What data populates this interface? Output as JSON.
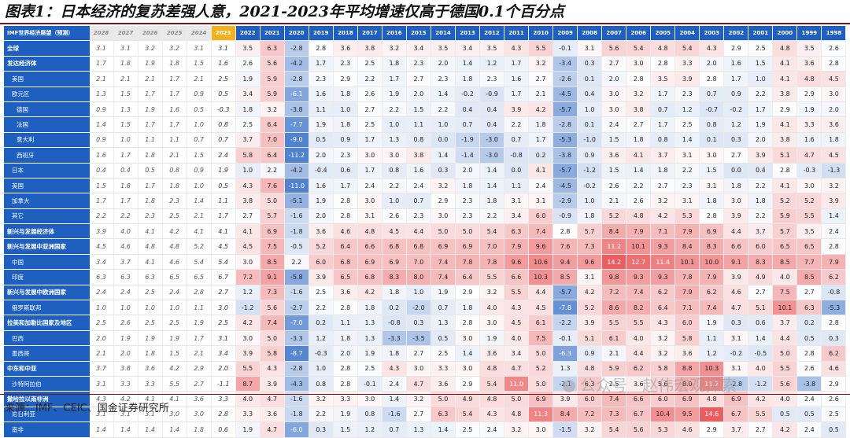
{
  "page": {
    "title": "图表1：日本经济的复苏差强人意，2021-2023年平均增速仅高于德国0.1个百分点",
    "source": "来源：IMF、CEIC、国金证券研究所",
    "watermark": "公众号 · 赵伟宏观探索"
  },
  "chart_data": {
    "type": "table",
    "corner_label": "IMF世界经济展望（预测）",
    "columns": [
      "2028",
      "2027",
      "2026",
      "2025",
      "2024",
      "2023",
      "2022",
      "2021",
      "2020",
      "2019",
      "2018",
      "2017",
      "2016",
      "2015",
      "2014",
      "2013",
      "2012",
      "2011",
      "2010",
      "2009",
      "2008",
      "2007",
      "2006",
      "2005",
      "2004",
      "2003",
      "2002",
      "2001",
      "2000",
      "1999",
      "1998"
    ],
    "forecast_columns": [
      "2028",
      "2027",
      "2026",
      "2025",
      "2024"
    ],
    "highlight_column": "2023",
    "color_scale": {
      "negative": "#3e74c9",
      "positive": "#e84b4e",
      "neutral": "#ffffff"
    },
    "rows": [
      {
        "label": "全球",
        "style": "bold",
        "values": [
          "3.1",
          "3.1",
          "3.2",
          "3.2",
          "3.1",
          "3.1",
          "3.5",
          "6.3",
          "-2.8",
          "2.8",
          "3.6",
          "3.8",
          "3.2",
          "3.4",
          "3.5",
          "3.4",
          "3.5",
          "4.3",
          "5.5",
          "-0.1",
          "3.1",
          "5.6",
          "5.4",
          "4.8",
          "5.4",
          "4.3",
          "2.9",
          "2.5",
          "4.8",
          "3.5",
          "2.6"
        ]
      },
      {
        "label": "发达经济体",
        "style": "bold",
        "values": [
          "1.7",
          "1.8",
          "1.9",
          "1.8",
          "1.5",
          "1.6",
          "2.6",
          "5.6",
          "-4.2",
          "1.7",
          "2.3",
          "2.5",
          "1.8",
          "2.3",
          "2.0",
          "1.4",
          "1.2",
          "1.7",
          "3.2",
          "-3.4",
          "0.3",
          "2.7",
          "3.0",
          "2.8",
          "3.3",
          "2.0",
          "1.6",
          "1.5",
          "4.1",
          "3.6",
          "2.8"
        ]
      },
      {
        "label": "美国",
        "style": "i1",
        "values": [
          "2.1",
          "2.1",
          "2.1",
          "1.7",
          "2.1",
          "2.5",
          "1.9",
          "5.9",
          "-2.8",
          "2.3",
          "2.9",
          "2.2",
          "1.7",
          "2.7",
          "2.3",
          "1.8",
          "2.3",
          "1.6",
          "2.7",
          "-2.6",
          "0.1",
          "2.0",
          "2.8",
          "3.5",
          "3.9",
          "2.8",
          "1.7",
          "1.0",
          "4.1",
          "4.8",
          "4.5"
        ]
      },
      {
        "label": "欧元区",
        "style": "i1",
        "values": [
          "1.3",
          "1.5",
          "1.7",
          "1.7",
          "0.9",
          "0.5",
          "3.4",
          "5.9",
          "-6.1",
          "1.6",
          "1.8",
          "2.6",
          "1.9",
          "2.0",
          "1.4",
          "-0.2",
          "-0.9",
          "1.7",
          "2.1",
          "-4.5",
          "0.4",
          "3.0",
          "3.2",
          "1.7",
          "2.3",
          "0.7",
          "0.9",
          "2.2",
          "3.8",
          "2.9",
          "3.0"
        ]
      },
      {
        "label": "德国",
        "style": "i2",
        "values": [
          "0.9",
          "1.3",
          "1.9",
          "1.6",
          "0.5",
          "-0.3",
          "1.8",
          "3.2",
          "-3.8",
          "1.1",
          "1.0",
          "2.7",
          "2.2",
          "1.5",
          "2.2",
          "0.4",
          "0.4",
          "3.9",
          "4.2",
          "-5.7",
          "1.0",
          "3.0",
          "3.8",
          "0.7",
          "1.2",
          "-0.7",
          "-0.2",
          "1.7",
          "2.9",
          "1.9",
          "2.0"
        ]
      },
      {
        "label": "法国",
        "style": "i2",
        "values": [
          "1.4",
          "1.5",
          "1.7",
          "1.7",
          "1.0",
          "0.8",
          "2.5",
          "6.4",
          "-7.7",
          "1.9",
          "1.8",
          "2.5",
          "1.0",
          "1.1",
          "1.0",
          "0.7",
          "0.4",
          "2.2",
          "1.8",
          "-2.8",
          "0.1",
          "2.4",
          "2.7",
          "1.7",
          "2.5",
          "0.8",
          "1.2",
          "1.9",
          "4.1",
          "3.3",
          "3.6"
        ]
      },
      {
        "label": "意大利",
        "style": "i2",
        "values": [
          "0.9",
          "1.0",
          "1.1",
          "1.1",
          "0.7",
          "0.7",
          "3.7",
          "7.0",
          "-9.0",
          "0.5",
          "0.9",
          "1.7",
          "1.3",
          "0.8",
          "0.0",
          "-1.9",
          "-3.0",
          "0.7",
          "1.7",
          "-5.3",
          "-1.0",
          "1.5",
          "1.8",
          "0.8",
          "1.4",
          "0.1",
          "0.3",
          "2.0",
          "3.8",
          "1.6",
          "1.8"
        ]
      },
      {
        "label": "西班牙",
        "style": "i2",
        "values": [
          "1.6",
          "1.7",
          "1.8",
          "2.1",
          "1.5",
          "2.4",
          "5.8",
          "6.4",
          "-11.2",
          "2.0",
          "2.3",
          "3.0",
          "3.0",
          "3.8",
          "1.4",
          "-1.4",
          "-3.0",
          "-0.8",
          "0.2",
          "-3.8",
          "0.9",
          "3.6",
          "4.1",
          "3.7",
          "3.1",
          "3.0",
          "2.7",
          "3.9",
          "5.1",
          "4.7",
          "4.5"
        ]
      },
      {
        "label": "日本",
        "style": "i1",
        "values": [
          "0.4",
          "0.4",
          "0.5",
          "0.8",
          "0.9",
          "1.9",
          "1.0",
          "2.2",
          "-4.2",
          "-0.4",
          "0.6",
          "1.7",
          "0.8",
          "1.6",
          "0.3",
          "2.0",
          "1.4",
          "0.0",
          "4.1",
          "-5.7",
          "-1.2",
          "1.5",
          "1.4",
          "1.8",
          "2.2",
          "1.5",
          "0.0",
          "0.4",
          "2.8",
          "-0.3",
          "-1.3"
        ]
      },
      {
        "label": "英国",
        "style": "i1",
        "values": [
          "1.5",
          "1.8",
          "1.7",
          "1.8",
          "1.0",
          "0.5",
          "4.3",
          "7.6",
          "-11.0",
          "1.6",
          "1.7",
          "2.4",
          "2.2",
          "2.4",
          "3.2",
          "1.8",
          "1.4",
          "1.1",
          "2.4",
          "-4.5",
          "-0.2",
          "2.6",
          "2.2",
          "2.7",
          "2.3",
          "3.1",
          "1.8",
          "2.2",
          "4.1",
          "3.0",
          "3.2"
        ]
      },
      {
        "label": "加拿大",
        "style": "i1",
        "values": [
          "1.7",
          "1.7",
          "1.8",
          "2.3",
          "1.4",
          "1.1",
          "3.8",
          "5.0",
          "-5.1",
          "1.9",
          "2.8",
          "3.0",
          "1.0",
          "0.7",
          "2.9",
          "2.3",
          "1.8",
          "3.1",
          "3.1",
          "-2.9",
          "1.0",
          "2.1",
          "2.6",
          "3.2",
          "3.1",
          "1.8",
          "3.0",
          "1.8",
          "5.2",
          "5.2",
          "3.9"
        ]
      },
      {
        "label": "其它",
        "style": "i1",
        "values": [
          "2.2",
          "2.2",
          "2.3",
          "2.5",
          "2.1",
          "1.7",
          "2.7",
          "5.7",
          "-1.6",
          "2.0",
          "2.8",
          "3.1",
          "2.6",
          "2.3",
          "3.0",
          "2.3",
          "2.2",
          "3.4",
          "6.0",
          "-0.9",
          "1.8",
          "5.2",
          "4.8",
          "4.2",
          "5.3",
          "2.8",
          "3.9",
          "2.2",
          "5.9",
          "5.5",
          "1.4"
        ]
      },
      {
        "label": "新兴与发展经济体",
        "style": "bold",
        "values": [
          "3.9",
          "4.0",
          "4.1",
          "4.2",
          "4.1",
          "4.1",
          "4.1",
          "6.9",
          "-1.8",
          "3.6",
          "4.6",
          "4.8",
          "4.5",
          "4.4",
          "5.0",
          "5.0",
          "5.4",
          "6.3",
          "7.4",
          "2.8",
          "5.7",
          "8.4",
          "7.9",
          "7.1",
          "7.9",
          "6.9",
          "4.4",
          "3.7",
          "5.7",
          "3.5",
          "2.4"
        ]
      },
      {
        "label": "新兴与发展中亚洲国家",
        "style": "bold",
        "values": [
          "4.5",
          "4.6",
          "4.8",
          "4.8",
          "5.2",
          "4.5",
          "4.5",
          "7.5",
          "-0.5",
          "5.2",
          "6.4",
          "6.6",
          "6.8",
          "6.8",
          "6.9",
          "6.9",
          "7.0",
          "7.9",
          "9.6",
          "7.6",
          "7.3",
          "11.2",
          "10.1",
          "9.3",
          "8.4",
          "8.3",
          "6.6",
          "6.0",
          "6.5",
          "6.5",
          "2.8"
        ]
      },
      {
        "label": "中国",
        "style": "i1",
        "values": [
          "3.4",
          "3.7",
          "4.1",
          "4.6",
          "5.4",
          "5.4",
          "3.0",
          "8.5",
          "2.2",
          "6.0",
          "6.8",
          "6.9",
          "6.9",
          "7.0",
          "7.4",
          "7.8",
          "7.8",
          "9.6",
          "10.6",
          "9.4",
          "9.6",
          "14.2",
          "12.7",
          "11.4",
          "10.1",
          "10.0",
          "9.1",
          "8.3",
          "8.5",
          "7.7",
          "7.9"
        ]
      },
      {
        "label": "印度",
        "style": "i1",
        "values": [
          "6.3",
          "6.3",
          "6.3",
          "6.5",
          "6.5",
          "6.7",
          "7.2",
          "9.1",
          "-5.8",
          "3.9",
          "6.5",
          "6.8",
          "8.3",
          "8.0",
          "7.4",
          "6.4",
          "5.5",
          "6.6",
          "10.3",
          "8.5",
          "3.1",
          "9.8",
          "9.3",
          "9.3",
          "7.8",
          "7.9",
          "3.9",
          "4.9",
          "4.0",
          "8.5",
          "6.2"
        ]
      },
      {
        "label": "新兴与发展中欧洲国家",
        "style": "bold",
        "values": [
          "2.4",
          "2.4",
          "2.5",
          "2.4",
          "2.8",
          "2.7",
          "1.2",
          "7.3",
          "-1.6",
          "2.5",
          "3.6",
          "4.2",
          "1.8",
          "1.0",
          "1.9",
          "2.9",
          "3.2",
          "5.5",
          "4.4",
          "-5.7",
          "4.2",
          "7.2",
          "7.4",
          "6.2",
          "7.9",
          "6.2",
          "4.6",
          "2.7",
          "7.5",
          "2.7",
          "-0.8"
        ]
      },
      {
        "label": "俄罗斯联邦",
        "style": "i1",
        "values": [
          "1.0",
          "1.0",
          "1.0",
          "1.0",
          "1.1",
          "3.0",
          "-1.2",
          "5.6",
          "-2.7",
          "2.2",
          "2.8",
          "1.8",
          "0.2",
          "-2.0",
          "0.7",
          "1.8",
          "4.0",
          "4.3",
          "4.5",
          "-7.8",
          "5.2",
          "8.6",
          "8.2",
          "6.4",
          "7.1",
          "7.4",
          "4.7",
          "5.1",
          "10.1",
          "6.3",
          "-5.3"
        ]
      },
      {
        "label": "拉美和加勒比国家及地区",
        "style": "bold",
        "values": [
          "2.5",
          "2.6",
          "2.5",
          "2.5",
          "1.9",
          "2.5",
          "4.2",
          "7.4",
          "-7.0",
          "0.2",
          "1.1",
          "1.3",
          "-0.8",
          "0.3",
          "1.3",
          "2.8",
          "3.0",
          "4.5",
          "6.1",
          "-2.2",
          "3.9",
          "5.5",
          "5.5",
          "4.3",
          "6.0",
          "1.9",
          "0.3",
          "0.6",
          "3.7",
          "0.2",
          "2.8"
        ]
      },
      {
        "label": "巴西",
        "style": "i1",
        "values": [
          "2.0",
          "1.9",
          "1.9",
          "1.9",
          "1.7",
          "3.1",
          "3.0",
          "5.0",
          "-3.3",
          "1.2",
          "1.8",
          "1.3",
          "-3.3",
          "-3.5",
          "0.5",
          "3.0",
          "1.9",
          "4.0",
          "7.5",
          "-0.1",
          "5.1",
          "6.1",
          "4.0",
          "3.2",
          "5.8",
          "1.1",
          "3.1",
          "1.4",
          "4.4",
          "0.5",
          "0.3"
        ]
      },
      {
        "label": "墨西哥",
        "style": "i1",
        "values": [
          "2.1",
          "2.0",
          "1.8",
          "1.5",
          "2.1",
          "3.4",
          "3.9",
          "5.8",
          "-8.7",
          "-0.3",
          "2.0",
          "1.9",
          "1.8",
          "2.7",
          "2.5",
          "1.4",
          "3.6",
          "3.4",
          "5.0",
          "-6.3",
          "0.9",
          "2.1",
          "4.4",
          "3.2",
          "3.6",
          "1.2",
          "-0.2",
          "-0.5",
          "5.0",
          "2.8",
          "6.2"
        ]
      },
      {
        "label": "中东和中亚",
        "style": "bold",
        "values": [
          "3.7",
          "3.8",
          "3.6",
          "4.2",
          "2.9",
          "2.0",
          "5.5",
          "4.3",
          "-2.8",
          "1.0",
          "2.8",
          "2.5",
          "4.3",
          "3.0",
          "3.3",
          "3.0",
          "4.8",
          "4.7",
          "5.2",
          "1.3",
          "4.8",
          "5.9",
          "6.2",
          "5.8",
          "8.8",
          "10.3",
          "3.1",
          "4.0",
          "5.5",
          "2.6",
          "4.6"
        ]
      },
      {
        "label": "沙特阿拉伯",
        "style": "i1",
        "values": [
          "3.1",
          "3.3",
          "3.3",
          "5.5",
          "2.7",
          "-1.1",
          "8.7",
          "3.9",
          "-4.3",
          "0.8",
          "2.8",
          "-0.1",
          "2.4",
          "4.7",
          "3.6",
          "2.9",
          "5.4",
          "11.0",
          "5.0",
          "-2.1",
          "6.3",
          "2.5",
          "3.6",
          "5.6",
          "8.0",
          "11.2",
          "-2.8",
          "-1.2",
          "5.6",
          "-3.8",
          "2.9"
        ]
      },
      {
        "label": "撒哈拉以南非洲",
        "style": "bold",
        "values": [
          "4.3",
          "4.2",
          "4.1",
          "4.1",
          "3.6",
          "3.3",
          "4.0",
          "4.7",
          "-1.6",
          "3.2",
          "3.3",
          "3.0",
          "1.4",
          "3.2",
          "5.0",
          "4.9",
          "4.8",
          "5.0",
          "6.9",
          "3.9",
          "6.0",
          "7.4",
          "6.6",
          "6.0",
          "6.9",
          "4.8",
          "6.9",
          "4.2",
          "4.0",
          "2.4",
          "2.6"
        ]
      },
      {
        "label": "尼日利亚",
        "style": "i1",
        "values": [
          "3.1",
          "3.1",
          "3.1",
          "3.0",
          "3.0",
          "2.8",
          "3.3",
          "3.6",
          "-1.8",
          "2.2",
          "1.9",
          "0.8",
          "-1.6",
          "2.7",
          "6.3",
          "5.4",
          "4.3",
          "4.8",
          "11.3",
          "8.4",
          "7.2",
          "7.3",
          "6.7",
          "10.4",
          "9.5",
          "14.6",
          "6.7",
          "5.5",
          "0.5",
          "0.5",
          "2.5"
        ]
      },
      {
        "label": "南非",
        "style": "i1",
        "values": [
          "1.4",
          "1.4",
          "1.4",
          "1.4",
          "1.8",
          "0.6",
          "1.9",
          "4.7",
          "-6.0",
          "0.3",
          "1.5",
          "1.2",
          "0.7",
          "1.3",
          "1.4",
          "2.5",
          "2.4",
          "3.2",
          "3.0",
          "-1.5",
          "3.2",
          "5.4",
          "5.6",
          "5.3",
          "4.6",
          "2.9",
          "3.7",
          "2.7",
          "4.2",
          "2.4",
          "0.5"
        ]
      }
    ]
  }
}
